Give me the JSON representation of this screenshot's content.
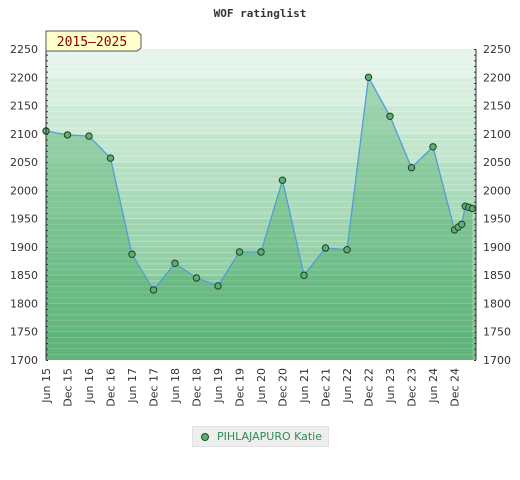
{
  "chart_data": {
    "type": "area",
    "title": "WOF ratinglist",
    "badge": "2015–2025",
    "ylim": [
      1700,
      2250
    ],
    "yticks": [
      1700,
      1750,
      1800,
      1850,
      1900,
      1950,
      2000,
      2050,
      2100,
      2150,
      2200,
      2250
    ],
    "xticks": [
      "Jun 15",
      "Dec 15",
      "Jun 16",
      "Dec 16",
      "Jun 17",
      "Dec 17",
      "Jun 18",
      "Dec 18",
      "Jun 19",
      "Dec 19",
      "Jun 20",
      "Dec 20",
      "Jun 21",
      "Dec 21",
      "Jun 22",
      "Dec 22",
      "Jun 23",
      "Dec 23",
      "Jun 24",
      "Dec 24"
    ],
    "legend": {
      "position": "bottom-center"
    },
    "series": [
      {
        "name": "PIHLAJAPURO Katie",
        "x": [
          "2015-06",
          "2015-12",
          "2016-06",
          "2016-12",
          "2017-06",
          "2017-12",
          "2018-06",
          "2018-12",
          "2019-06",
          "2019-12",
          "2020-06",
          "2020-12",
          "2021-06",
          "2021-12",
          "2022-06",
          "2022-12",
          "2023-06",
          "2023-12",
          "2024-06",
          "2024-12",
          "2025-01",
          "2025-02",
          "2025-03",
          "2025-04",
          "2025-05"
        ],
        "values": [
          2105,
          2098,
          2096,
          2057,
          1887,
          1824,
          1871,
          1845,
          1831,
          1891,
          1891,
          2018,
          1850,
          1898,
          1895,
          2200,
          2131,
          2040,
          2077,
          1930,
          1935,
          1940,
          1972,
          1970,
          1968
        ]
      }
    ]
  }
}
